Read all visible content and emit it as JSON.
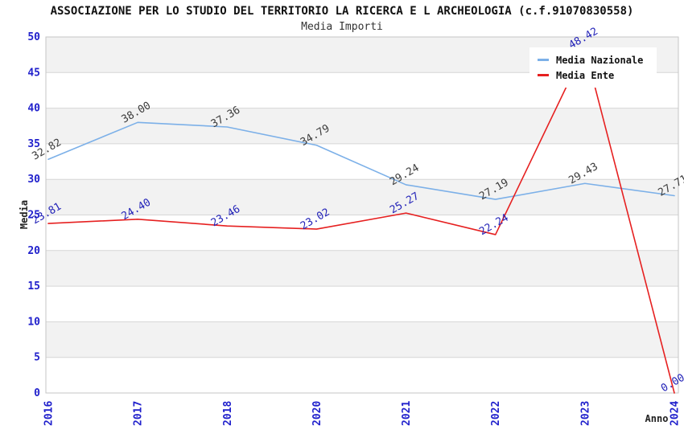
{
  "header": {
    "title": "ASSOCIAZIONE PER LO STUDIO DEL TERRITORIO LA RICERCA E L ARCHEOLOGIA (c.f.91070830558)",
    "subtitle": "Media Importi"
  },
  "legend": {
    "items": [
      {
        "label": "Media Nazionale",
        "color": "#7cb0e8"
      },
      {
        "label": "Media Ente",
        "color": "#e62020"
      }
    ]
  },
  "axes": {
    "y_title": "Media",
    "x_title": "Anno"
  },
  "chart_data": {
    "type": "line",
    "title": "ASSOCIAZIONE PER LO STUDIO DEL TERRITORIO LA RICERCA E L ARCHEOLOGIA (c.f.91070830558)",
    "subtitle": "Media Importi",
    "xlabel": "Anno",
    "ylabel": "Media",
    "x": [
      "2016",
      "2017",
      "2018",
      "2020",
      "2021",
      "2022",
      "2023",
      "2024"
    ],
    "series": [
      {
        "name": "Media Nazionale",
        "color": "#7cb0e8",
        "label_color": "#3c3c3c",
        "values": [
          32.82,
          38.0,
          37.36,
          34.79,
          29.24,
          27.19,
          29.43,
          27.71
        ]
      },
      {
        "name": "Media Ente",
        "color": "#e62020",
        "label_color": "#2323b8",
        "values": [
          23.81,
          24.4,
          23.46,
          23.02,
          25.27,
          22.24,
          48.42,
          0.0
        ]
      }
    ],
    "ylim": [
      0,
      50
    ],
    "yticks": [
      0,
      5,
      10,
      15,
      20,
      25,
      30,
      35,
      40,
      45,
      50
    ],
    "grid": "horizontal-bands",
    "band_colors": [
      "#f2f2f2",
      "#ffffff"
    ],
    "gridline_color": "#d6d6d6",
    "border_color": "#c6c6c6",
    "tick_label_color": "#2121cc",
    "legend_position": "top-right",
    "value_label_decimals": 2,
    "value_label_rotation_deg": -30
  }
}
